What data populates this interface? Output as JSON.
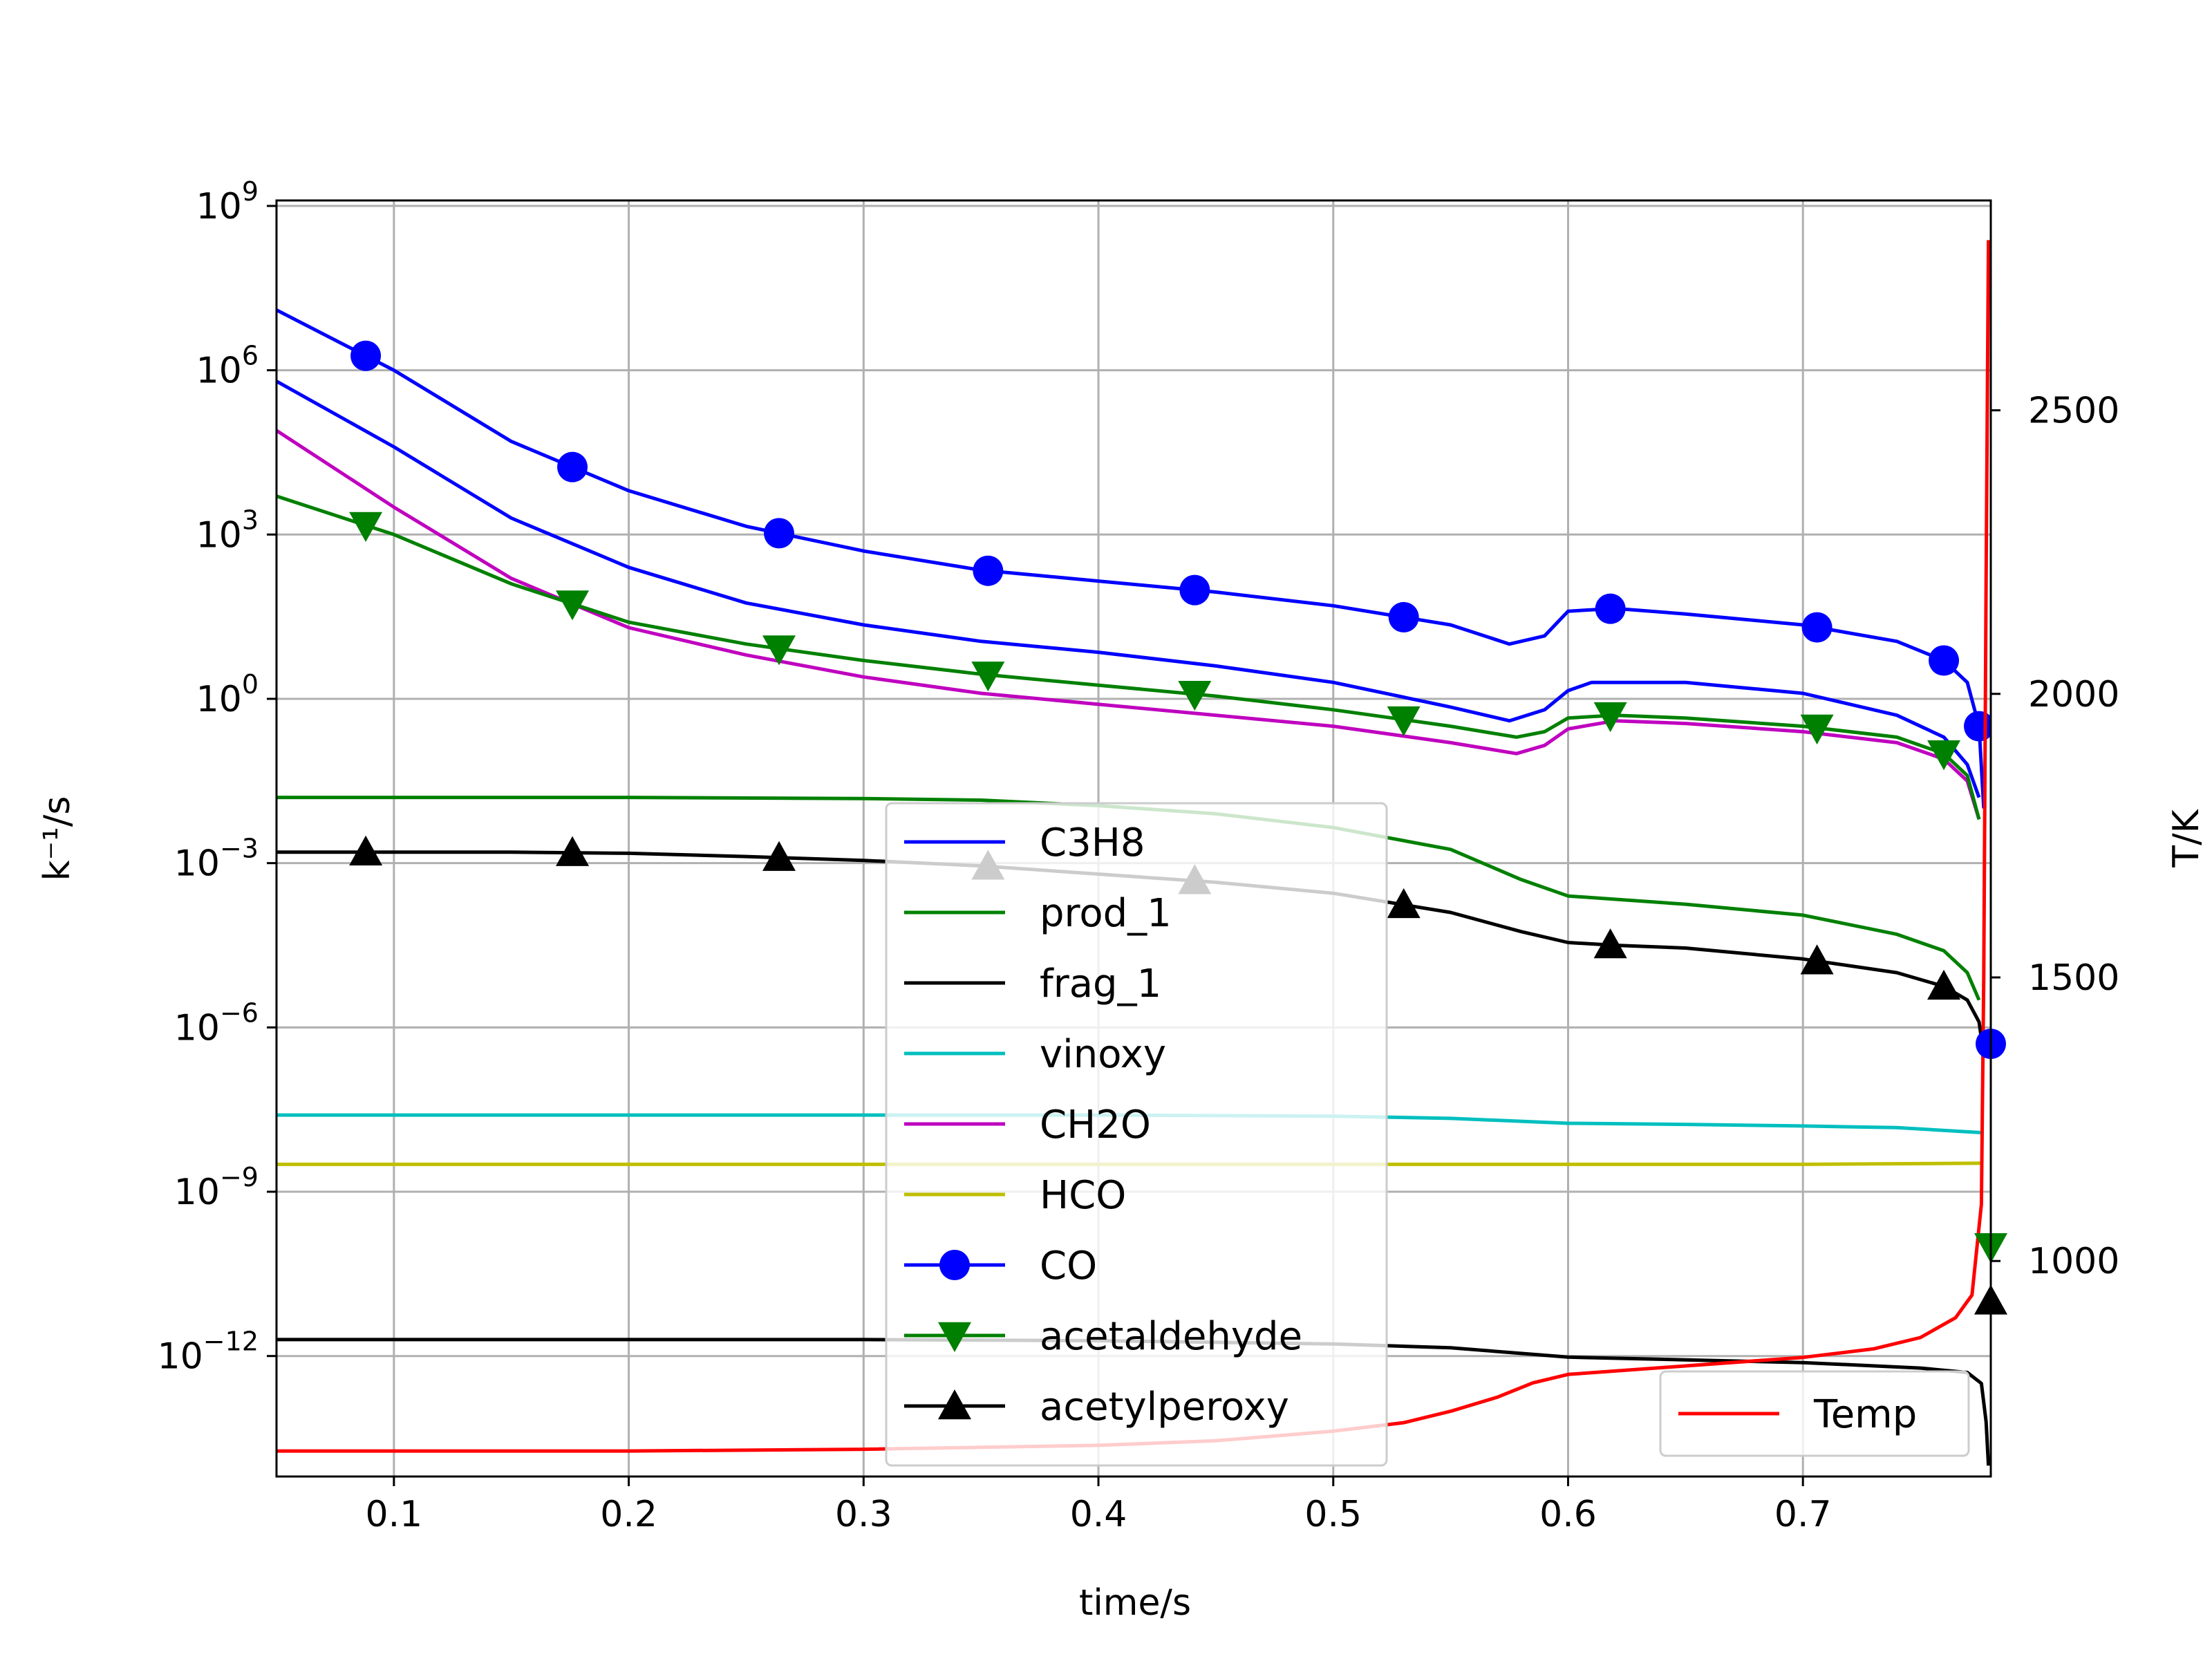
{
  "chart_data": {
    "type": "line",
    "title": "",
    "xlabel": "time/s",
    "ylabel": "k⁻¹/s",
    "y2label": "T/K",
    "xlim": [
      0.05,
      0.78
    ],
    "ylim_log10": [
      -14.2,
      9.1
    ],
    "y_scale": "log",
    "y2lim": [
      620,
      2870
    ],
    "grid": true,
    "x_ticks": [
      0.1,
      0.2,
      0.3,
      0.4,
      0.5,
      0.6,
      0.7
    ],
    "x_tick_labels": [
      "0.1",
      "0.2",
      "0.3",
      "0.4",
      "0.5",
      "0.6",
      "0.7"
    ],
    "y_ticks_exp": [
      9,
      6,
      3,
      0,
      -3,
      -6,
      -9,
      -12
    ],
    "y_tick_base": "10",
    "y_tick_exp_labels": [
      "9",
      "6",
      "3",
      "0",
      "−3",
      "−6",
      "−9",
      "−12"
    ],
    "y2_ticks": [
      1000,
      1500,
      2000,
      2500
    ],
    "y2_tick_labels": [
      "1000",
      "1500",
      "2000",
      "2500"
    ],
    "legend_main": {
      "location": "lower center"
    },
    "legend_secondary": {
      "location": "lower right"
    },
    "series": [
      {
        "name": "C3H8",
        "color": "#0000ff",
        "marker": "none",
        "axis": "left",
        "points": [
          [
            0.05,
            5.8
          ],
          [
            0.1,
            4.6
          ],
          [
            0.15,
            3.3
          ],
          [
            0.2,
            2.4
          ],
          [
            0.25,
            1.75
          ],
          [
            0.3,
            1.35
          ],
          [
            0.35,
            1.05
          ],
          [
            0.4,
            0.85
          ],
          [
            0.45,
            0.6
          ],
          [
            0.5,
            0.3
          ],
          [
            0.55,
            -0.15
          ],
          [
            0.575,
            -0.4
          ],
          [
            0.59,
            -0.2
          ],
          [
            0.6,
            0.15
          ],
          [
            0.61,
            0.3
          ],
          [
            0.65,
            0.3
          ],
          [
            0.7,
            0.1
          ],
          [
            0.74,
            -0.3
          ],
          [
            0.76,
            -0.7
          ],
          [
            0.77,
            -1.2
          ],
          [
            0.775,
            -1.8
          ]
        ]
      },
      {
        "name": "prod_1",
        "color": "#008000",
        "marker": "none",
        "axis": "left",
        "points": [
          [
            0.05,
            -1.8
          ],
          [
            0.2,
            -1.8
          ],
          [
            0.3,
            -1.82
          ],
          [
            0.35,
            -1.85
          ],
          [
            0.4,
            -1.95
          ],
          [
            0.45,
            -2.1
          ],
          [
            0.5,
            -2.35
          ],
          [
            0.55,
            -2.75
          ],
          [
            0.58,
            -3.3
          ],
          [
            0.6,
            -3.6
          ],
          [
            0.65,
            -3.75
          ],
          [
            0.7,
            -3.95
          ],
          [
            0.74,
            -4.3
          ],
          [
            0.76,
            -4.6
          ],
          [
            0.77,
            -5.0
          ],
          [
            0.775,
            -5.5
          ]
        ]
      },
      {
        "name": "frag_1",
        "color": "#000000",
        "marker": "none",
        "axis": "left",
        "points": [
          [
            0.05,
            -11.7
          ],
          [
            0.2,
            -11.7
          ],
          [
            0.3,
            -11.7
          ],
          [
            0.4,
            -11.72
          ],
          [
            0.5,
            -11.78
          ],
          [
            0.55,
            -11.85
          ],
          [
            0.6,
            -12.02
          ],
          [
            0.65,
            -12.07
          ],
          [
            0.7,
            -12.12
          ],
          [
            0.75,
            -12.22
          ],
          [
            0.77,
            -12.3
          ],
          [
            0.776,
            -12.5
          ],
          [
            0.778,
            -13.2
          ],
          [
            0.779,
            -14.0
          ]
        ]
      },
      {
        "name": "vinoxy",
        "color": "#00bfbf",
        "marker": "none",
        "axis": "left",
        "points": [
          [
            0.05,
            -7.6
          ],
          [
            0.2,
            -7.6
          ],
          [
            0.3,
            -7.6
          ],
          [
            0.4,
            -7.6
          ],
          [
            0.5,
            -7.62
          ],
          [
            0.55,
            -7.66
          ],
          [
            0.6,
            -7.75
          ],
          [
            0.65,
            -7.77
          ],
          [
            0.7,
            -7.8
          ],
          [
            0.74,
            -7.83
          ],
          [
            0.776,
            -7.92
          ]
        ]
      },
      {
        "name": "CH2O",
        "color": "#bf00bf",
        "marker": "none",
        "axis": "left",
        "points": [
          [
            0.05,
            4.9
          ],
          [
            0.1,
            3.5
          ],
          [
            0.15,
            2.2
          ],
          [
            0.2,
            1.3
          ],
          [
            0.25,
            0.8
          ],
          [
            0.3,
            0.4
          ],
          [
            0.35,
            0.1
          ],
          [
            0.4,
            -0.1
          ],
          [
            0.45,
            -0.3
          ],
          [
            0.5,
            -0.5
          ],
          [
            0.55,
            -0.8
          ],
          [
            0.578,
            -1.0
          ],
          [
            0.59,
            -0.85
          ],
          [
            0.6,
            -0.55
          ],
          [
            0.62,
            -0.4
          ],
          [
            0.65,
            -0.45
          ],
          [
            0.7,
            -0.6
          ],
          [
            0.74,
            -0.8
          ],
          [
            0.76,
            -1.1
          ],
          [
            0.77,
            -1.5
          ],
          [
            0.775,
            -2.2
          ]
        ]
      },
      {
        "name": "HCO",
        "color": "#bfbf00",
        "marker": "none",
        "axis": "left",
        "points": [
          [
            0.05,
            -8.5
          ],
          [
            0.2,
            -8.5
          ],
          [
            0.4,
            -8.5
          ],
          [
            0.6,
            -8.5
          ],
          [
            0.7,
            -8.5
          ],
          [
            0.776,
            -8.48
          ]
        ]
      },
      {
        "name": "CO",
        "color": "#0000ff",
        "marker": "circle",
        "axis": "left",
        "points": [
          [
            0.05,
            7.1
          ],
          [
            0.1,
            6.0
          ],
          [
            0.15,
            4.7
          ],
          [
            0.2,
            3.8
          ],
          [
            0.25,
            3.15
          ],
          [
            0.3,
            2.7
          ],
          [
            0.35,
            2.35
          ],
          [
            0.4,
            2.15
          ],
          [
            0.45,
            1.95
          ],
          [
            0.5,
            1.7
          ],
          [
            0.55,
            1.35
          ],
          [
            0.575,
            1.0
          ],
          [
            0.59,
            1.15
          ],
          [
            0.6,
            1.6
          ],
          [
            0.62,
            1.65
          ],
          [
            0.65,
            1.55
          ],
          [
            0.7,
            1.35
          ],
          [
            0.74,
            1.05
          ],
          [
            0.76,
            0.7
          ],
          [
            0.77,
            0.3
          ],
          [
            0.775,
            -0.5
          ],
          [
            0.777,
            -2.0
          ]
        ],
        "marker_x": [
          0.088,
          0.176,
          0.264,
          0.353,
          0.441,
          0.53,
          0.618,
          0.706,
          0.76,
          0.775
        ]
      },
      {
        "name": "acetaldehyde",
        "color": "#008000",
        "marker": "triangle-down",
        "axis": "left",
        "points": [
          [
            0.05,
            3.7
          ],
          [
            0.1,
            3.0
          ],
          [
            0.15,
            2.1
          ],
          [
            0.2,
            1.4
          ],
          [
            0.25,
            1.0
          ],
          [
            0.3,
            0.7
          ],
          [
            0.35,
            0.45
          ],
          [
            0.4,
            0.25
          ],
          [
            0.45,
            0.05
          ],
          [
            0.5,
            -0.2
          ],
          [
            0.55,
            -0.5
          ],
          [
            0.578,
            -0.7
          ],
          [
            0.59,
            -0.6
          ],
          [
            0.6,
            -0.35
          ],
          [
            0.62,
            -0.3
          ],
          [
            0.65,
            -0.35
          ],
          [
            0.7,
            -0.5
          ],
          [
            0.74,
            -0.7
          ],
          [
            0.76,
            -1.0
          ],
          [
            0.77,
            -1.4
          ],
          [
            0.775,
            -2.2
          ]
        ],
        "marker_x": [
          0.088,
          0.176,
          0.264,
          0.353,
          0.441,
          0.53,
          0.618,
          0.706,
          0.76
        ]
      },
      {
        "name": "acetylperoxy",
        "color": "#000000",
        "marker": "triangle-up",
        "axis": "left",
        "points": [
          [
            0.05,
            -2.8
          ],
          [
            0.15,
            -2.8
          ],
          [
            0.2,
            -2.82
          ],
          [
            0.25,
            -2.88
          ],
          [
            0.3,
            -2.95
          ],
          [
            0.35,
            -3.05
          ],
          [
            0.4,
            -3.2
          ],
          [
            0.45,
            -3.35
          ],
          [
            0.5,
            -3.55
          ],
          [
            0.55,
            -3.9
          ],
          [
            0.58,
            -4.25
          ],
          [
            0.6,
            -4.45
          ],
          [
            0.62,
            -4.5
          ],
          [
            0.65,
            -4.55
          ],
          [
            0.7,
            -4.75
          ],
          [
            0.74,
            -5.0
          ],
          [
            0.76,
            -5.25
          ],
          [
            0.77,
            -5.5
          ],
          [
            0.775,
            -5.9
          ],
          [
            0.777,
            -6.5
          ]
        ],
        "marker_x": [
          0.088,
          0.176,
          0.264,
          0.353,
          0.441,
          0.53,
          0.618,
          0.706,
          0.76
        ]
      },
      {
        "name": "Temp",
        "color": "#ff0000",
        "marker": "none",
        "axis": "right",
        "points": [
          [
            0.05,
            665
          ],
          [
            0.2,
            665
          ],
          [
            0.3,
            668
          ],
          [
            0.4,
            675
          ],
          [
            0.45,
            683
          ],
          [
            0.5,
            700
          ],
          [
            0.53,
            715
          ],
          [
            0.55,
            735
          ],
          [
            0.57,
            760
          ],
          [
            0.585,
            785
          ],
          [
            0.6,
            800
          ],
          [
            0.65,
            815
          ],
          [
            0.7,
            830
          ],
          [
            0.73,
            845
          ],
          [
            0.75,
            865
          ],
          [
            0.765,
            900
          ],
          [
            0.772,
            940
          ],
          [
            0.776,
            1100
          ],
          [
            0.777,
            1500
          ],
          [
            0.778,
            2200
          ],
          [
            0.779,
            2800
          ]
        ]
      }
    ],
    "end_markers": [
      {
        "series": "CO",
        "x": 0.78,
        "y": -6.3
      },
      {
        "series": "acetaldehyde",
        "x": 0.78,
        "y": -10.0
      },
      {
        "series": "acetylperoxy",
        "x": 0.78,
        "y": -11.0
      }
    ]
  }
}
